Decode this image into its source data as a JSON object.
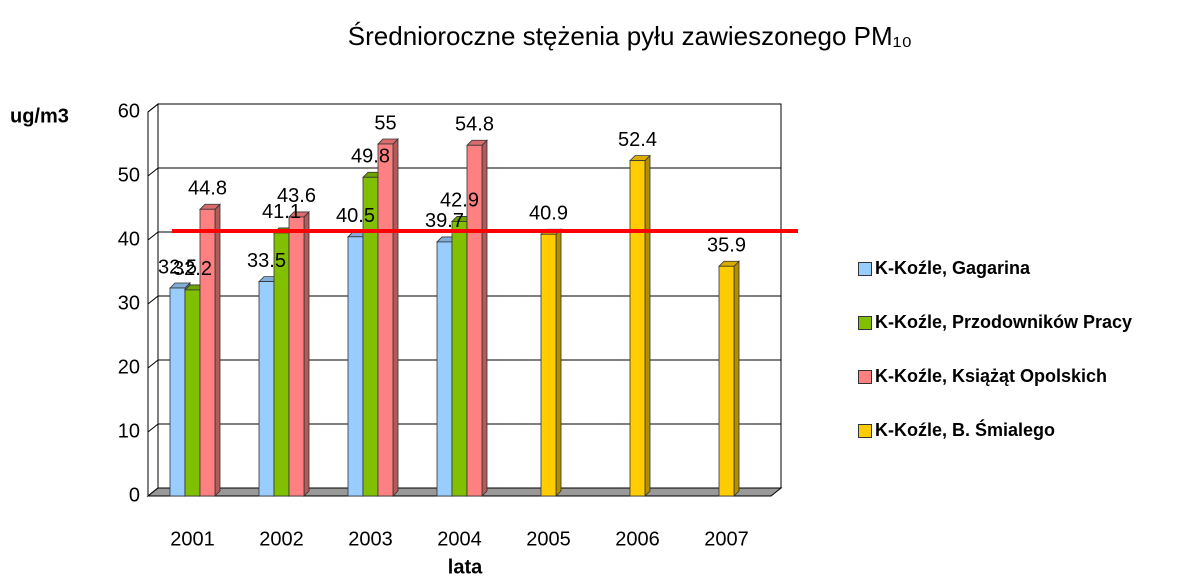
{
  "chart_data": {
    "type": "bar3d",
    "title": "Średnioroczne stężenia pyłu zawieszonego PM₁₀",
    "y_label": "ug/m3",
    "x_label": "lata",
    "categories": [
      "2001",
      "2002",
      "2003",
      "2004",
      "2005",
      "2006",
      "2007"
    ],
    "series": [
      {
        "name": "K-Koźle, Gagarina",
        "color": "#99ccff",
        "values": [
          32.5,
          33.5,
          40.5,
          39.7,
          null,
          null,
          null
        ]
      },
      {
        "name": "K-Koźle, Przodowników Pracy",
        "color": "#80c000",
        "values": [
          32.2,
          41.1,
          49.8,
          42.9,
          null,
          null,
          null
        ]
      },
      {
        "name": "K-Koźle, Książąt Opolskich",
        "color": "#ff8080",
        "values": [
          44.8,
          43.6,
          55,
          54.8,
          null,
          null,
          null
        ]
      },
      {
        "name": "K-Koźle, B. Śmialego",
        "color": "#ffcc00",
        "values": [
          null,
          null,
          null,
          null,
          40.9,
          52.4,
          35.9
        ]
      }
    ],
    "ylim": [
      0,
      60
    ],
    "yticks": [
      0,
      10,
      20,
      30,
      40,
      50,
      60
    ],
    "grid": true,
    "reference_line": {
      "value": 41.4,
      "color": "#ff0000"
    },
    "legend": "right"
  }
}
